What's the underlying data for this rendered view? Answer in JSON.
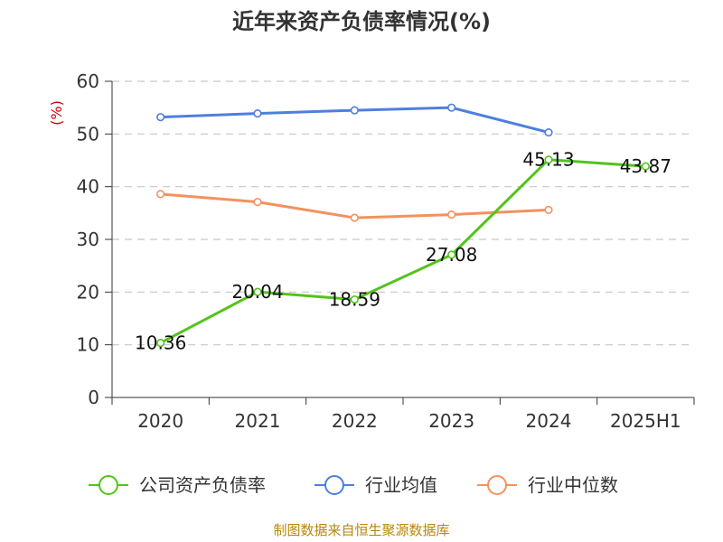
{
  "chart_data": {
    "type": "line",
    "title": "近年来资产负债率情况(%)",
    "ylabel": "(%)",
    "xlabel": "",
    "categories": [
      "2020",
      "2021",
      "2022",
      "2023",
      "2024",
      "2025H1"
    ],
    "ylim": [
      0,
      60
    ],
    "yticks": [
      0,
      10,
      20,
      30,
      40,
      50,
      60
    ],
    "grid": true,
    "legend_position": "bottom",
    "series": [
      {
        "name": "公司资产负债率",
        "color": "#52c41a",
        "values": [
          10.36,
          20.04,
          18.59,
          27.08,
          45.13,
          43.87
        ],
        "labels": [
          "10.36",
          "20.04",
          "18.59",
          "27.08",
          "45.13",
          "43.87"
        ]
      },
      {
        "name": "行业均值",
        "color": "#4e7fdc",
        "values": [
          53.2,
          53.9,
          54.5,
          55.0,
          50.3,
          null
        ]
      },
      {
        "name": "行业中位数",
        "color": "#f4915e",
        "values": [
          38.6,
          37.1,
          34.1,
          34.7,
          35.6,
          null
        ]
      }
    ]
  },
  "source_text": "制图数据来自恒生聚源数据库"
}
